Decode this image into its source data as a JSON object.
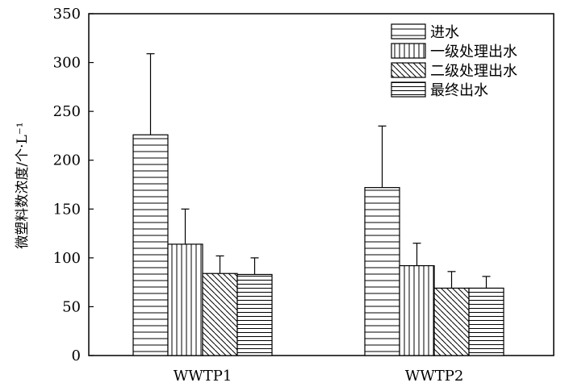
{
  "chart_data": {
    "type": "bar",
    "title": "",
    "xlabel": "",
    "ylabel": "微塑料数浓度/个·L⁻¹",
    "ylim": [
      0,
      350
    ],
    "yticks": [
      0,
      50,
      100,
      150,
      200,
      250,
      300,
      350
    ],
    "categories": [
      "WWTP1",
      "WWTP2"
    ],
    "series": [
      {
        "name": "进水",
        "pattern": "horizontal-wide",
        "values": [
          226,
          172
        ],
        "errors": [
          83,
          63
        ]
      },
      {
        "name": "一级处理出水",
        "pattern": "vertical",
        "values": [
          114,
          92
        ],
        "errors": [
          36,
          23
        ]
      },
      {
        "name": "二级处理出水",
        "pattern": "diagonal",
        "values": [
          84,
          69
        ],
        "errors": [
          18,
          17
        ]
      },
      {
        "name": "最终出水",
        "pattern": "horizontal-dense",
        "values": [
          83,
          69
        ],
        "errors": [
          17,
          12
        ]
      }
    ],
    "grid": false,
    "legend_position": "top-right",
    "colors": {
      "stroke": "#000000",
      "fill": "#ffffff"
    }
  }
}
